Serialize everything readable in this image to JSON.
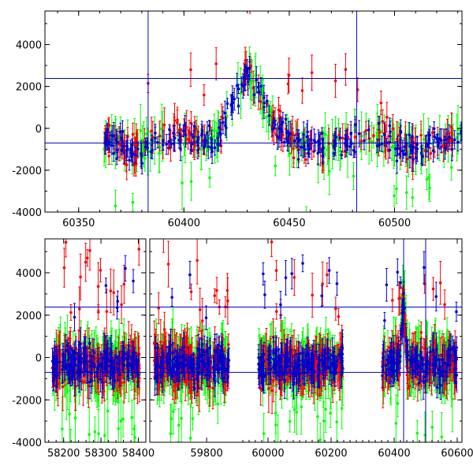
{
  "chart_data": [
    {
      "type": "scatter",
      "title": "",
      "xlabel": "",
      "ylabel": "",
      "xlim": [
        60334,
        60532
      ],
      "ylim": [
        -4000,
        5600
      ],
      "grid": false,
      "x_ticks": [
        60350,
        60400,
        60450,
        60500
      ],
      "y_ticks": [
        -4000,
        -2000,
        0,
        2000,
        4000
      ],
      "hlines": [
        2380,
        -700
      ],
      "vlines": [
        60383,
        60482
      ],
      "series_colors": {
        "red": "#ff0000",
        "green": "#00ff00",
        "blue": "#0000cc"
      },
      "observing_season": [
        60362,
        60532
      ],
      "flare_peak_x": 60430,
      "flare_peak_y": 2600
    },
    {
      "type": "scatter",
      "title": "",
      "xlabel": "",
      "ylabel": "",
      "broken_x_axis": true,
      "segments": [
        {
          "xlim": [
            58150,
            58420
          ],
          "x_ticks": [
            58200,
            58300,
            58400
          ],
          "data_range": [
            58170,
            58405
          ]
        },
        {
          "xlim": [
            59610,
            59900
          ],
          "x_ticks": [
            59800
          ],
          "data_range": [
            59625,
            59875
          ]
        },
        {
          "xlim": [
            59900,
            60615
          ],
          "x_ticks": [
            60000,
            60200,
            60400,
            60600
          ],
          "data_range": [
            59970,
            60240
          ]
        },
        {
          "xlim": [
            59900,
            60615
          ],
          "x_ticks": [],
          "data_range": [
            60362,
            60600
          ]
        }
      ],
      "ylim": [
        -4000,
        5600
      ],
      "grid": false,
      "y_ticks": [
        -4000,
        -2000,
        0,
        2000,
        4000
      ],
      "hlines": [
        2380,
        -700
      ],
      "vlines": [
        60430,
        60500
      ],
      "series_colors": {
        "red": "#ff0000",
        "green": "#00ff00",
        "blue": "#0000cc"
      }
    }
  ]
}
